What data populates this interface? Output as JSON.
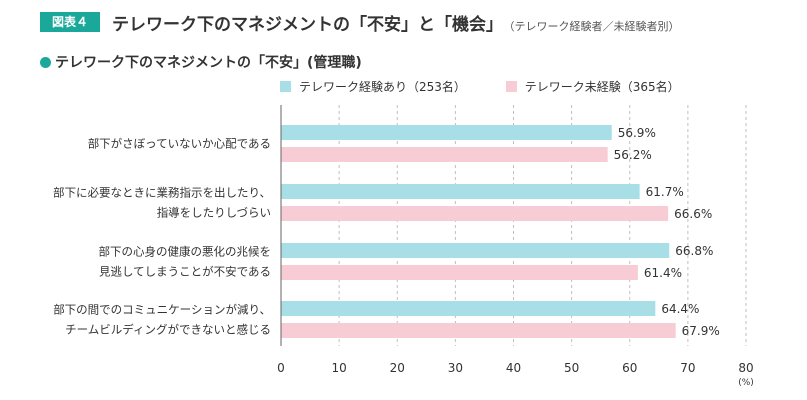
{
  "header": {
    "badge": "図表４",
    "title": "テレワーク下のマネジメントの「不安」と「機会」",
    "subtitle": "（テレワーク経験者／未経験者別）"
  },
  "section": {
    "title": "テレワーク下のマネジメントの「不安」(管理職)"
  },
  "colors": {
    "accent": "#1aa89a",
    "series_experienced": "#a8dfe6",
    "series_inexperienced": "#f7ccd4"
  },
  "chart_data": {
    "type": "bar",
    "orientation": "horizontal",
    "categories": [
      [
        "部下がさぼっていないか心配である"
      ],
      [
        "部下に必要なときに業務指示を出したり、",
        "指導をしたりしづらい"
      ],
      [
        "部下の心身の健康の悪化の兆候を",
        "見逃してしまうことが不安である"
      ],
      [
        "部下の間でのコミュニケーションが減り、",
        "チームビルディングができないと感じる"
      ]
    ],
    "series": [
      {
        "name": "テレワーク経験あり（253名）",
        "values": [
          56.9,
          61.7,
          66.8,
          64.4
        ],
        "labels": [
          "56.9%",
          "61.7%",
          "66.8%",
          "64.4%"
        ]
      },
      {
        "name": "テレワーク未経験（365名）",
        "values": [
          56.2,
          66.6,
          61.4,
          67.9
        ],
        "labels": [
          "56.2%",
          "66.6%",
          "61.4%",
          "67.9%"
        ]
      }
    ],
    "xlim": [
      0,
      80
    ],
    "ticks": [
      "0",
      "10",
      "20",
      "30",
      "40",
      "50",
      "60",
      "70",
      "80"
    ],
    "unit": "(%)",
    "grid": true,
    "legend_position": "top"
  }
}
